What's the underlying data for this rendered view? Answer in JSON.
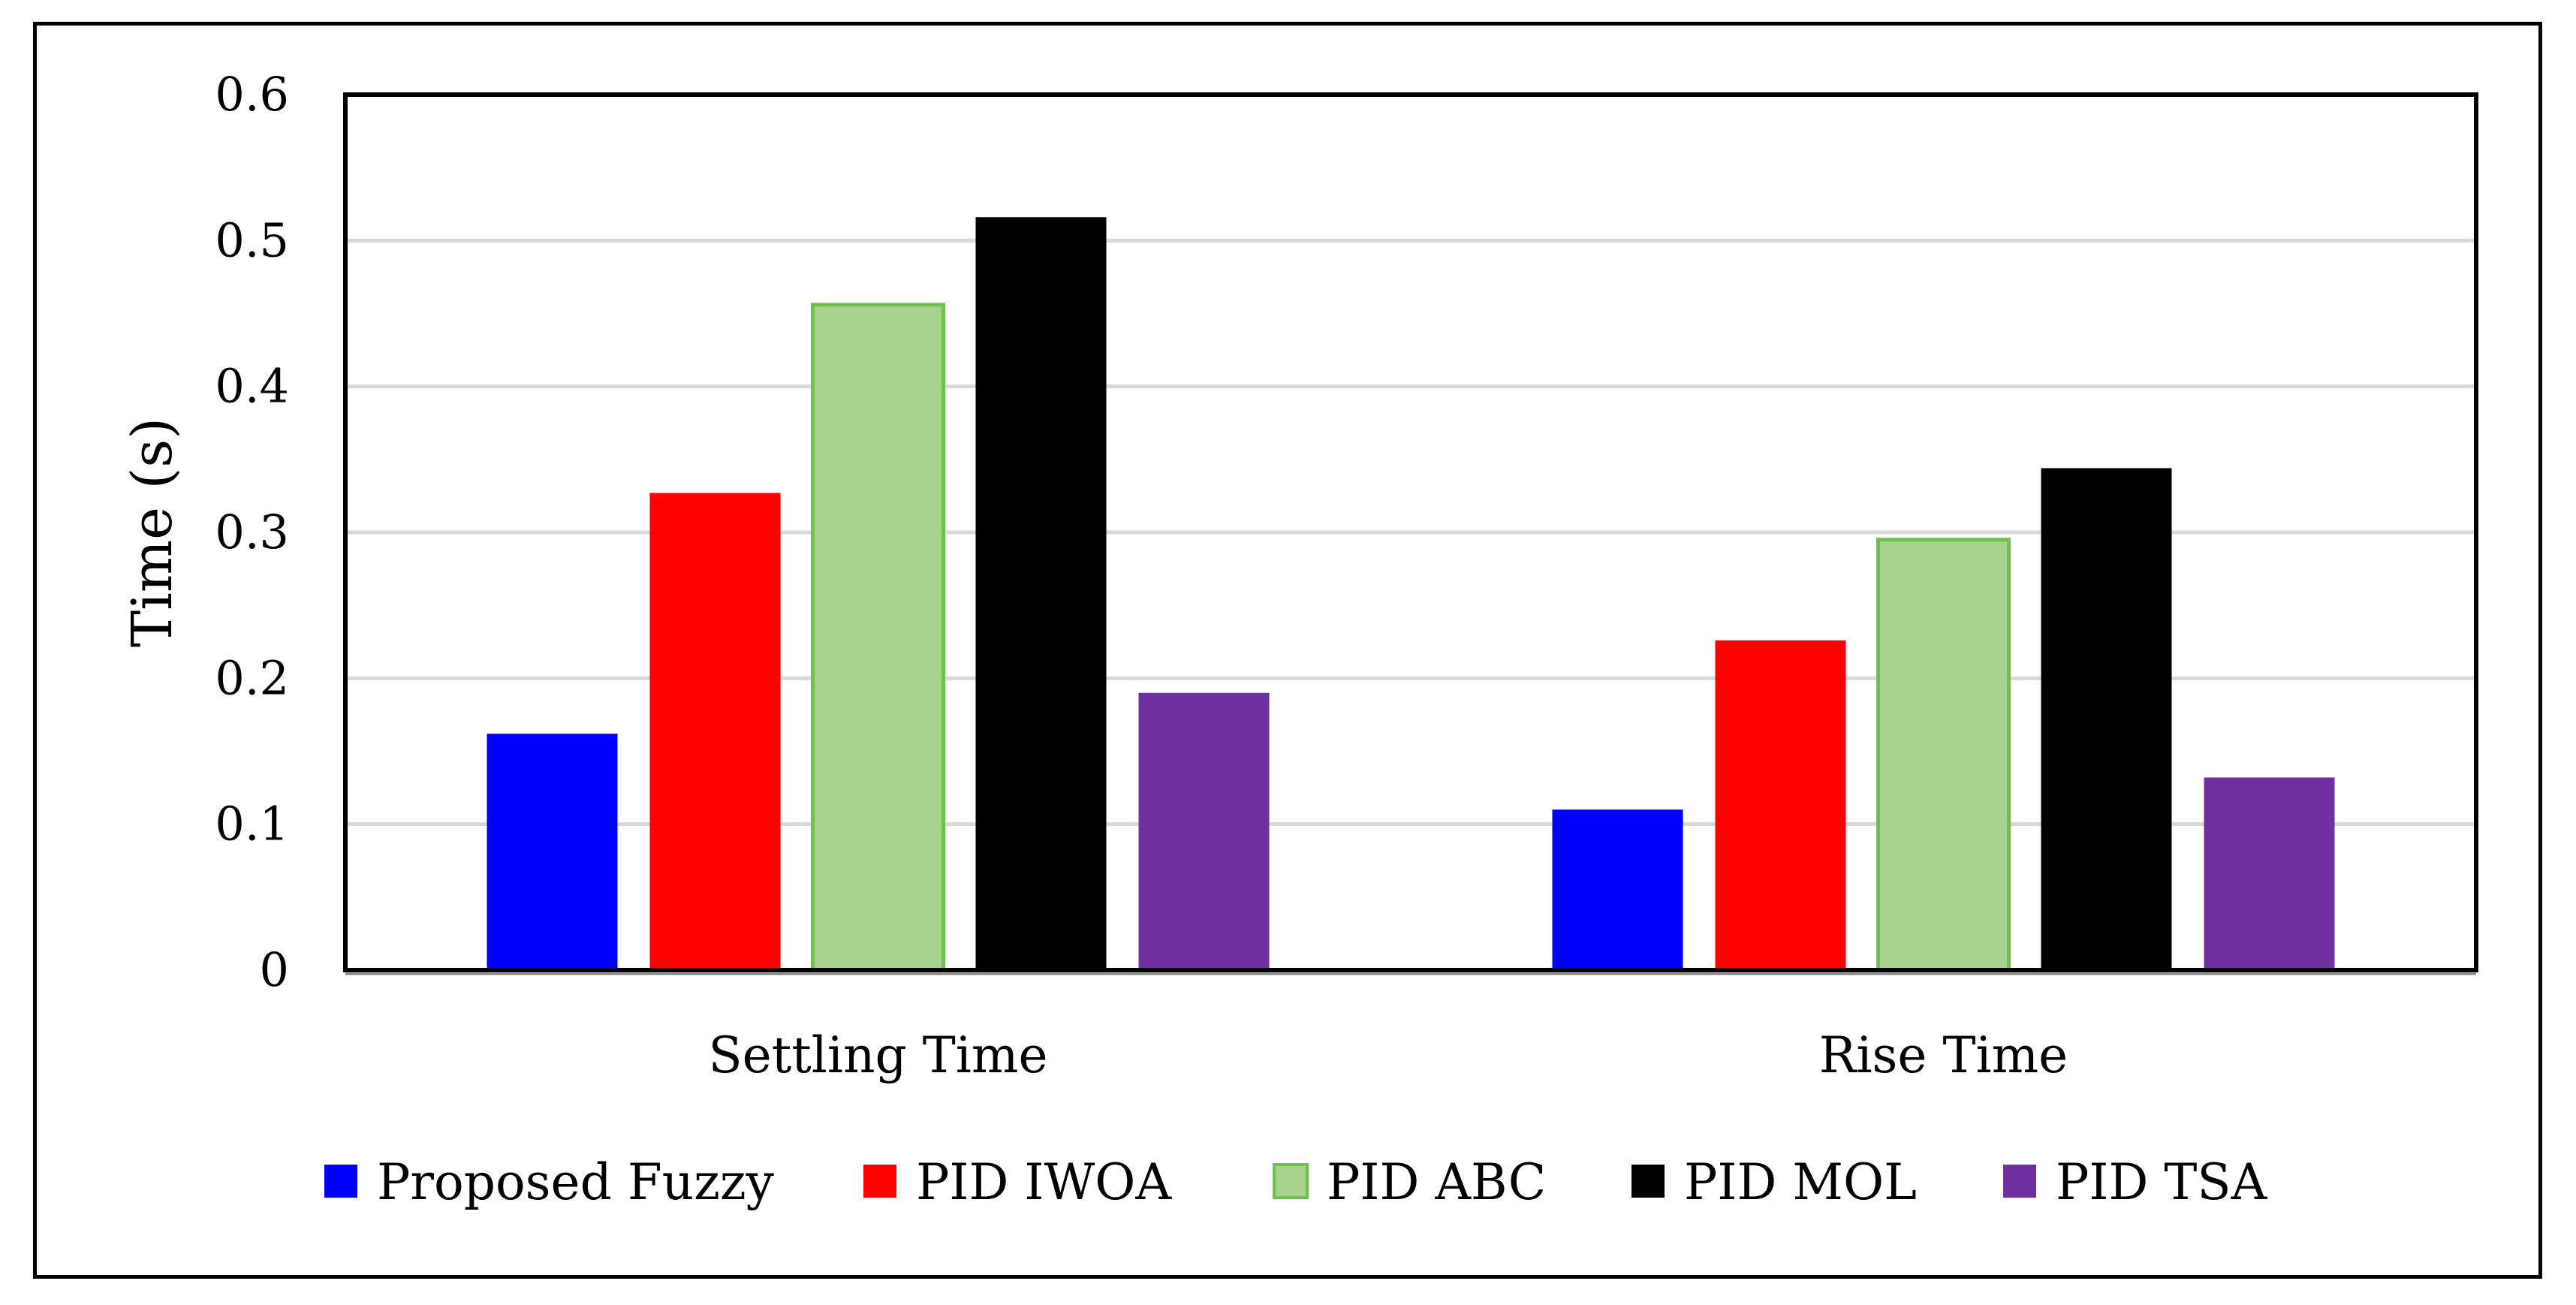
{
  "chart_data": {
    "type": "bar",
    "title": "",
    "xlabel": "",
    "ylabel": "Time (s)",
    "ylim": [
      0,
      0.6
    ],
    "yticks": [
      "0",
      "0.1",
      "0.2",
      "0.3",
      "0.4",
      "0.5",
      "0.6"
    ],
    "grid": true,
    "legend_position": "bottom",
    "categories": [
      "Settling Time",
      "Rise Time"
    ],
    "series": [
      {
        "name": "Proposed Fuzzy",
        "color": "#0000ff",
        "values": [
          0.162,
          0.11
        ]
      },
      {
        "name": "PID IWOA",
        "color": "#ff0000",
        "values": [
          0.327,
          0.226
        ]
      },
      {
        "name": "PID ABC",
        "color": "#a9d18e",
        "values": [
          0.456,
          0.295
        ]
      },
      {
        "name": "PID MOL",
        "color": "#000000",
        "values": [
          0.516,
          0.344
        ]
      },
      {
        "name": "PID TSA",
        "color": "#7030a0",
        "values": [
          0.19,
          0.132
        ]
      }
    ]
  },
  "colors": {
    "grid": "#d9d9d9",
    "axis": "#000000",
    "abc_border": "#70c050"
  }
}
